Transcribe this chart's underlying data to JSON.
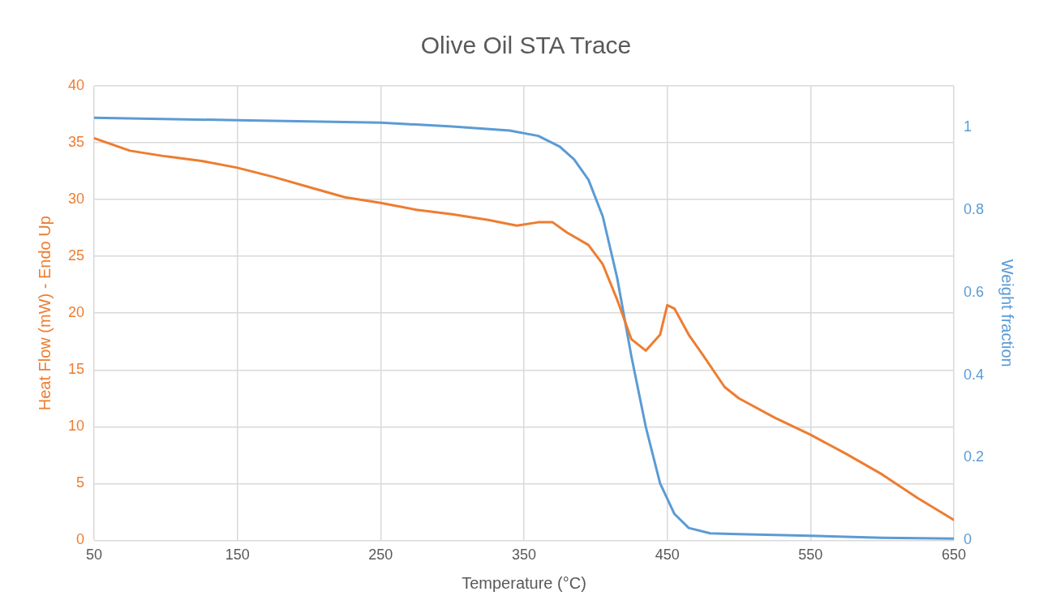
{
  "chart_data": {
    "type": "line",
    "title": "Olive Oil STA Trace",
    "xlabel": "Temperature (°C)",
    "ylabel": "Heat Flow (mW) - Endo Up",
    "y2label": "Weight fraction",
    "xlim": [
      50,
      650
    ],
    "xticks": [
      50,
      150,
      250,
      350,
      450,
      550,
      650
    ],
    "ylim": [
      0,
      40
    ],
    "yticks": [
      0,
      5,
      10,
      15,
      20,
      25,
      30,
      35,
      40
    ],
    "y2lim": [
      0,
      1.1
    ],
    "y2ticks": [
      0,
      0.2,
      0.4,
      0.6,
      0.8,
      1
    ],
    "grid": true,
    "legend": false,
    "series": [
      {
        "color": "#ed7d31",
        "x": [
          50,
          75,
          100,
          125,
          150,
          175,
          200,
          225,
          250,
          275,
          300,
          325,
          345,
          360,
          370,
          380,
          395,
          405,
          415,
          425,
          435,
          445,
          450,
          455,
          465,
          475,
          490,
          500,
          525,
          550,
          575,
          600,
          625,
          650
        ],
        "values": [
          35.4,
          34.3,
          33.8,
          33.4,
          32.8,
          32.0,
          31.1,
          30.2,
          29.7,
          29.1,
          28.7,
          28.2,
          27.7,
          28.0,
          28.0,
          27.1,
          26.0,
          24.3,
          21.2,
          17.7,
          16.7,
          18.1,
          20.7,
          20.4,
          18.1,
          16.3,
          13.5,
          12.5,
          10.8,
          9.3,
          7.6,
          5.8,
          3.7,
          1.8
        ]
      },
      {
        "color": "#5b9bd5",
        "axis": "y2",
        "x": [
          50,
          150,
          250,
          300,
          340,
          360,
          375,
          385,
          395,
          405,
          415,
          425,
          435,
          445,
          455,
          465,
          480,
          500,
          550,
          600,
          650
        ],
        "values": [
          1.023,
          1.017,
          1.011,
          1.002,
          0.992,
          0.979,
          0.953,
          0.922,
          0.873,
          0.784,
          0.636,
          0.445,
          0.275,
          0.138,
          0.064,
          0.03,
          0.017,
          0.015,
          0.011,
          0.006,
          0.004
        ]
      }
    ]
  }
}
